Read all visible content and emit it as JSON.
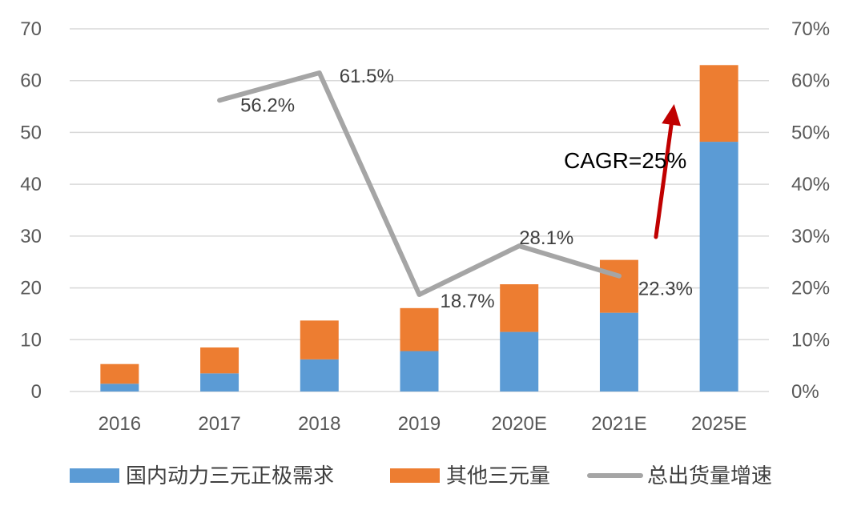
{
  "chart_data": {
    "type": "bar",
    "stacked": true,
    "categories": [
      "2016",
      "2017",
      "2018",
      "2019",
      "2020E",
      "2021E",
      "2025E"
    ],
    "series": [
      {
        "name": "国内动力三元正极需求",
        "type": "bar",
        "axis": "left",
        "color": "#5B9BD5",
        "values": [
          1.5,
          3.5,
          6.2,
          7.8,
          11.5,
          15.2,
          48.2
        ]
      },
      {
        "name": "其他三元量",
        "type": "bar",
        "axis": "left",
        "color": "#ED7D31",
        "values": [
          3.8,
          5.0,
          7.5,
          8.3,
          9.2,
          10.2,
          14.8
        ]
      },
      {
        "name": "总出货量增速",
        "type": "line",
        "axis": "right",
        "color": "#A5A5A5",
        "values": [
          null,
          56.2,
          61.5,
          18.7,
          28.1,
          22.3,
          null
        ],
        "labels": [
          null,
          "56.2%",
          "61.5%",
          "18.7%",
          "28.1%",
          "22.3%",
          null
        ]
      }
    ],
    "y_left": {
      "min": 0,
      "max": 70,
      "step": 10,
      "ticks": [
        "0",
        "10",
        "20",
        "30",
        "40",
        "50",
        "60",
        "70"
      ]
    },
    "y_right": {
      "min": 0,
      "max": 70,
      "step": 10,
      "ticks": [
        "0%",
        "10%",
        "20%",
        "30%",
        "40%",
        "50%",
        "60%",
        "70%"
      ]
    },
    "grid": true,
    "legend_position": "bottom",
    "annotation": {
      "text": "CAGR=25%",
      "arrow_color": "#C00000",
      "from_category": "2021E",
      "to_category": "2025E"
    }
  }
}
